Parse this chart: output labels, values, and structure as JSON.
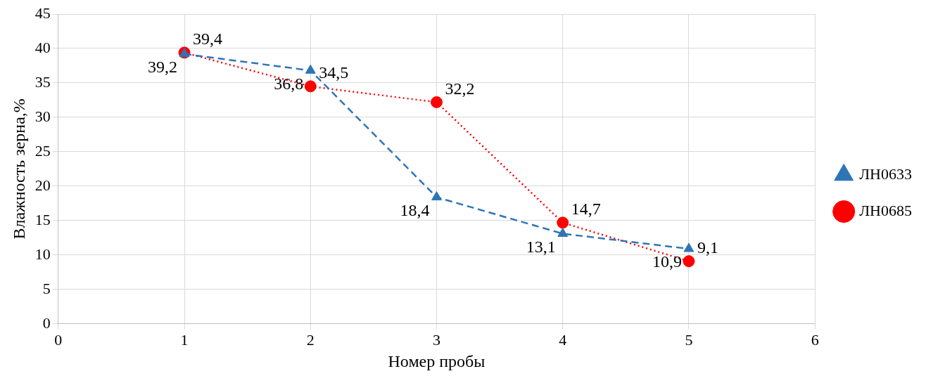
{
  "chart_data": {
    "type": "line",
    "xlabel": "Номер пробы",
    "ylabel": "Влажность зерна,%",
    "x": [
      1,
      2,
      3,
      4,
      5
    ],
    "xlim": [
      0,
      6
    ],
    "xticks": [
      0,
      1,
      2,
      3,
      4,
      5,
      6
    ],
    "ylim": [
      0,
      45
    ],
    "yticks": [
      0,
      5,
      10,
      15,
      20,
      25,
      30,
      35,
      40,
      45
    ],
    "grid": true,
    "legend": "right",
    "series": [
      {
        "name": "ЛН0633",
        "color": "#2e75b6",
        "marker": "triangle",
        "line_style": "dashed",
        "values": [
          39.2,
          36.8,
          18.4,
          13.1,
          10.9
        ],
        "value_labels": [
          "39,2",
          "36,8",
          "18,4",
          "13,1",
          "10,9"
        ]
      },
      {
        "name": "ЛН0685",
        "color": "#ff0000",
        "marker": "circle",
        "line_style": "dotted",
        "values": [
          39.4,
          34.5,
          32.2,
          14.7,
          9.1
        ],
        "value_labels": [
          "39,4",
          "34,5",
          "32,2",
          "14,7",
          "9,1"
        ]
      }
    ]
  }
}
